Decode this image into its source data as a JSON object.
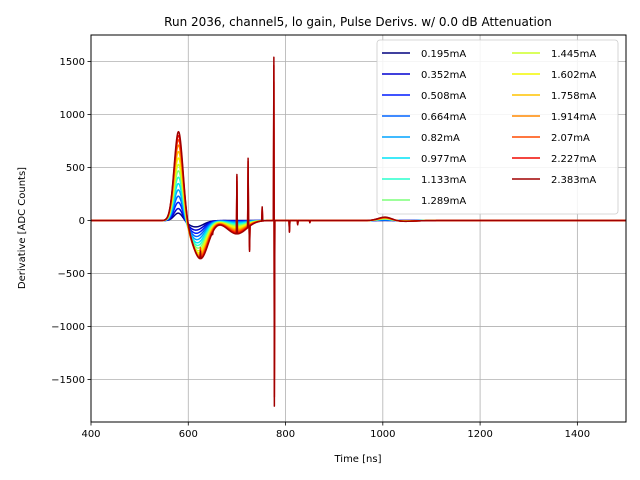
{
  "chart_data": {
    "type": "line",
    "title": "Run 2036, channel5, lo gain, Pulse Derivs. w/ 0.0 dB Attenuation",
    "xlabel": "Time [ns]",
    "ylabel": "Derivative [ADC Counts]",
    "xlim": [
      400,
      1500
    ],
    "ylim": [
      -1900,
      1750
    ],
    "xticks": [
      400,
      600,
      800,
      1000,
      1200,
      1400
    ],
    "yticks": [
      -1500,
      -1000,
      -500,
      0,
      500,
      1000,
      1500
    ],
    "grid": true,
    "legend_position": "top-right",
    "series": [
      {
        "name": "0.195mA",
        "color": "#00007f",
        "peak": 75,
        "trough": -60
      },
      {
        "name": "0.352mA",
        "color": "#0000d1",
        "peak": 120,
        "trough": -90
      },
      {
        "name": "0.508mA",
        "color": "#001cff",
        "peak": 180,
        "trough": -120
      },
      {
        "name": "0.664mA",
        "color": "#0064ff",
        "peak": 240,
        "trough": -150
      },
      {
        "name": "0.82mA",
        "color": "#00a4ff",
        "peak": 300,
        "trough": -180
      },
      {
        "name": "0.977mA",
        "color": "#00e4f7",
        "peak": 360,
        "trough": -210
      },
      {
        "name": "1.133mA",
        "color": "#29ffce",
        "peak": 420,
        "trough": -235
      },
      {
        "name": "1.289mA",
        "color": "#7dff7a",
        "peak": 480,
        "trough": -260
      },
      {
        "name": "1.445mA",
        "color": "#ceff29",
        "peak": 540,
        "trough": -285
      },
      {
        "name": "1.602mA",
        "color": "#f4f802",
        "peak": 600,
        "trough": -305
      },
      {
        "name": "1.758mA",
        "color": "#ffc400",
        "peak": 660,
        "trough": -320
      },
      {
        "name": "1.914mA",
        "color": "#ff8900",
        "peak": 720,
        "trough": -335
      },
      {
        "name": "2.07mA",
        "color": "#ff4a00",
        "peak": 770,
        "trough": -345
      },
      {
        "name": "2.227mA",
        "color": "#f10800",
        "peak": 810,
        "trough": -355
      },
      {
        "name": "2.383mA",
        "color": "#a00000",
        "peak": 845,
        "trough": -360
      }
    ]
  }
}
